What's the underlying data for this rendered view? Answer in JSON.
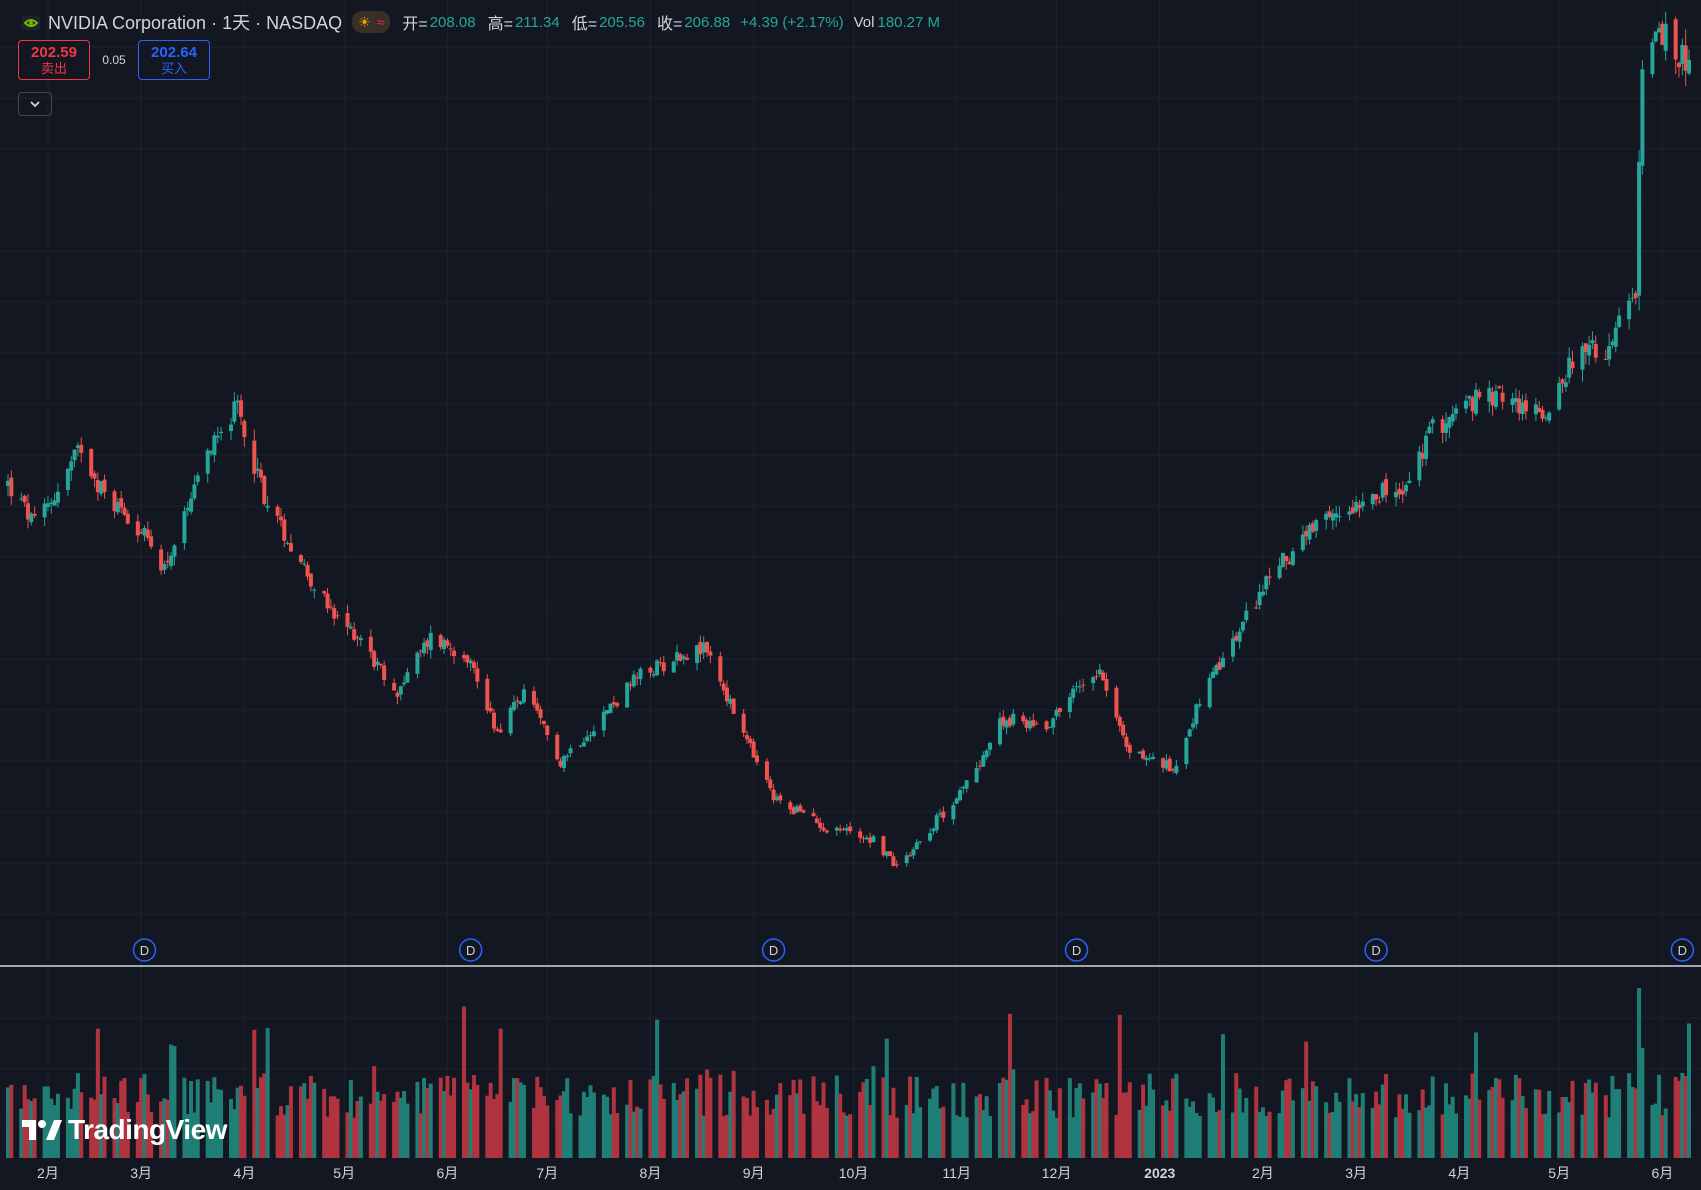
{
  "legend": {
    "title": "NVIDIA Corporation · 1天 · NASDAQ",
    "open_label": "开=",
    "open": "208.08",
    "high_label": "高=",
    "high": "211.34",
    "low_label": "低=",
    "low": "205.56",
    "close_label": "收=",
    "close": "206.88",
    "change": "+4.39 (+2.17%)",
    "vol_label": "Vol",
    "vol": "180.27 M",
    "icons": [
      "nvidia-logo-icon",
      "sun-icon",
      "wave-icon"
    ]
  },
  "trade": {
    "sell_price": "202.59",
    "sell_label": "卖出",
    "spread": "0.05",
    "buy_price": "202.64",
    "buy_label": "买入"
  },
  "colors": {
    "up": "#26a69a",
    "down": "#ef5350",
    "background": "#131722",
    "grid": "#1e222d",
    "dividend_marker": "#2962ff",
    "separator": "#d1d4dc"
  },
  "watermark": {
    "text": "TradingView"
  },
  "chart_data": {
    "type": "candlestick",
    "symbol": "NVIDIA Corporation",
    "interval": "1天",
    "exchange": "NASDAQ",
    "x_tick_labels": [
      "2月",
      "3月",
      "4月",
      "5月",
      "6月",
      "7月",
      "8月",
      "9月",
      "10月",
      "11月",
      "12月",
      "2023",
      "2月",
      "3月",
      "4月",
      "5月",
      "6月"
    ],
    "dividend_marker_label": "D",
    "dividend_marker_dates": [
      "2022-03-02",
      "2022-06-08",
      "2022-09-07",
      "2022-12-07",
      "2023-03-07",
      "2023-06-07"
    ],
    "price_path": [
      [
        "2022-01-20",
        242
      ],
      [
        "2022-01-28",
        228
      ],
      [
        "2022-02-04",
        240
      ],
      [
        "2022-02-11",
        255
      ],
      [
        "2022-02-18",
        238
      ],
      [
        "2022-02-25",
        232
      ],
      [
        "2022-03-08",
        214
      ],
      [
        "2022-03-15",
        232
      ],
      [
        "2022-03-24",
        262
      ],
      [
        "2022-03-30",
        267
      ],
      [
        "2022-04-08",
        235
      ],
      [
        "2022-04-18",
        216
      ],
      [
        "2022-04-28",
        196
      ],
      [
        "2022-05-06",
        190
      ],
      [
        "2022-05-16",
        170
      ],
      [
        "2022-05-27",
        190
      ],
      [
        "2022-06-07",
        184
      ],
      [
        "2022-06-16",
        158
      ],
      [
        "2022-06-24",
        171
      ],
      [
        "2022-07-05",
        148
      ],
      [
        "2022-07-15",
        160
      ],
      [
        "2022-07-28",
        176
      ],
      [
        "2022-08-10",
        184
      ],
      [
        "2022-08-18",
        186
      ],
      [
        "2022-08-26",
        164
      ],
      [
        "2022-09-07",
        135
      ],
      [
        "2022-09-14",
        131
      ],
      [
        "2022-09-23",
        125
      ],
      [
        "2022-09-30",
        124
      ],
      [
        "2022-10-07",
        121
      ],
      [
        "2022-10-14",
        112
      ],
      [
        "2022-10-24",
        125
      ],
      [
        "2022-11-03",
        138
      ],
      [
        "2022-11-15",
        162
      ],
      [
        "2022-11-28",
        160
      ],
      [
        "2022-12-05",
        170
      ],
      [
        "2022-12-14",
        180
      ],
      [
        "2022-12-22",
        152
      ],
      [
        "2023-01-05",
        145
      ],
      [
        "2023-01-13",
        168
      ],
      [
        "2023-01-25",
        192
      ],
      [
        "2023-02-03",
        211
      ],
      [
        "2023-02-15",
        225
      ],
      [
        "2023-02-24",
        232
      ],
      [
        "2023-03-06",
        240
      ],
      [
        "2023-03-15",
        238
      ],
      [
        "2023-03-24",
        261
      ],
      [
        "2023-04-05",
        270
      ],
      [
        "2023-04-14",
        272
      ],
      [
        "2023-04-26",
        265
      ],
      [
        "2023-05-05",
        285
      ],
      [
        "2023-05-15",
        288
      ],
      [
        "2023-05-24",
        305
      ],
      [
        "2023-05-26",
        389
      ],
      [
        "2023-06-02",
        393
      ],
      [
        "2023-06-09",
        385
      ]
    ],
    "volume_scale": "relative",
    "last_bar": {
      "open": 208.08,
      "high": 211.34,
      "low": 205.56,
      "close": 206.88,
      "change": 4.39,
      "change_pct": 2.17,
      "volume": "180.27 M"
    },
    "grid": true,
    "legend_position": "top-left"
  }
}
